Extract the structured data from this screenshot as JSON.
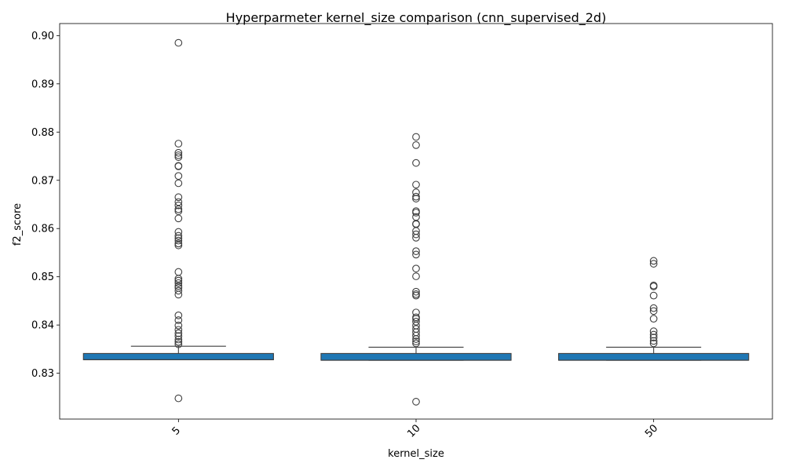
{
  "chart_data": {
    "type": "box",
    "title": "Hyperparmeter kernel_size comparison (cnn_supervised_2d)",
    "xlabel": "kernel_size",
    "ylabel": "f2_score",
    "categories": [
      "5",
      "10",
      "50"
    ],
    "ylim": [
      0.8205,
      0.9025
    ],
    "yticks": [
      0.83,
      0.84,
      0.85,
      0.86,
      0.87,
      0.88,
      0.89,
      0.9
    ],
    "ytick_labels": [
      "0.83",
      "0.84",
      "0.85",
      "0.86",
      "0.87",
      "0.88",
      "0.89",
      "0.90"
    ],
    "xtick_rotation_deg": 45,
    "grid": false,
    "box_color": "#1f77b4",
    "line_color": "#3f3f3f",
    "boxes": [
      {
        "category": "5",
        "whisker_low": 0.8328,
        "q1": 0.8328,
        "median": 0.8328,
        "q3": 0.8341,
        "whisker_high": 0.8356,
        "outliers": [
          0.8985,
          0.8776,
          0.8757,
          0.8752,
          0.8748,
          0.873,
          0.8729,
          0.8709,
          0.8694,
          0.8665,
          0.8655,
          0.8648,
          0.864,
          0.8636,
          0.8621,
          0.8593,
          0.8585,
          0.858,
          0.8575,
          0.8569,
          0.8565,
          0.851,
          0.8496,
          0.8492,
          0.8487,
          0.8481,
          0.8477,
          0.8471,
          0.8463,
          0.842,
          0.841,
          0.8399,
          0.839,
          0.8383,
          0.8377,
          0.837,
          0.8365,
          0.836,
          0.8248
        ]
      },
      {
        "category": "10",
        "whisker_low": 0.8327,
        "q1": 0.8327,
        "median": 0.8327,
        "q3": 0.8341,
        "whisker_high": 0.8354,
        "outliers": [
          0.879,
          0.8773,
          0.8736,
          0.8691,
          0.8675,
          0.8666,
          0.8662,
          0.8636,
          0.8633,
          0.8624,
          0.861,
          0.8609,
          0.8595,
          0.8588,
          0.8581,
          0.8553,
          0.8546,
          0.8517,
          0.8501,
          0.8469,
          0.8464,
          0.8461,
          0.8426,
          0.8416,
          0.8413,
          0.8407,
          0.8399,
          0.8392,
          0.8385,
          0.8378,
          0.8371,
          0.8366,
          0.8362,
          0.8241
        ]
      },
      {
        "category": "50",
        "whisker_low": 0.8327,
        "q1": 0.8327,
        "median": 0.8327,
        "q3": 0.8341,
        "whisker_high": 0.8354,
        "outliers": [
          0.8533,
          0.8527,
          0.8482,
          0.848,
          0.8461,
          0.8435,
          0.8429,
          0.8413,
          0.8387,
          0.838,
          0.8374,
          0.8367,
          0.8362
        ]
      }
    ]
  }
}
